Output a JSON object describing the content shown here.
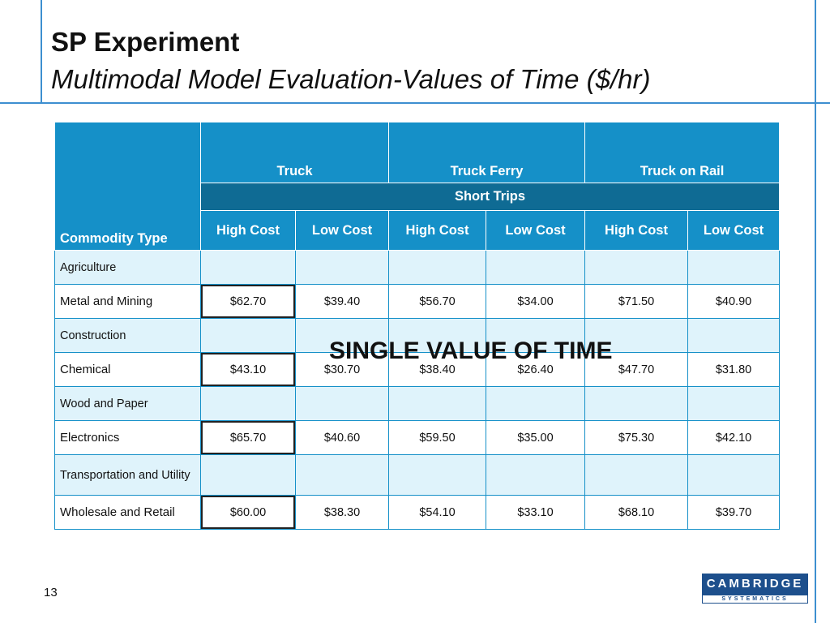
{
  "title": "SP Experiment",
  "subtitle": "Multimodal Model Evaluation-Values of Time ($/hr)",
  "table": {
    "commodity_header": "Commodity Type",
    "modes": [
      "Truck",
      "Truck Ferry",
      "Truck on Rail"
    ],
    "trip_band": "Short Trips",
    "cost_headers": [
      "High Cost",
      "Low Cost",
      "High Cost",
      "Low Cost",
      "High Cost",
      "Low Cost"
    ],
    "rows": [
      {
        "label": "Agriculture",
        "values": [
          "",
          "",
          "",
          "",
          "",
          ""
        ]
      },
      {
        "label": "Metal and Mining",
        "values": [
          "$62.70",
          "$39.40",
          "$56.70",
          "$34.00",
          "$71.50",
          "$40.90"
        ]
      },
      {
        "label": "Construction",
        "values": [
          "",
          "",
          "",
          "",
          "",
          ""
        ]
      },
      {
        "label": "Chemical",
        "values": [
          "$43.10",
          "$30.70",
          "$38.40",
          "$26.40",
          "$47.70",
          "$31.80"
        ]
      },
      {
        "label": "Wood and Paper",
        "values": [
          "",
          "",
          "",
          "",
          "",
          ""
        ]
      },
      {
        "label": "Electronics",
        "values": [
          "$65.70",
          "$40.60",
          "$59.50",
          "$35.00",
          "$75.30",
          "$42.10"
        ]
      },
      {
        "label": "Transportation and Utility",
        "values": [
          "",
          "",
          "",
          "",
          "",
          ""
        ]
      },
      {
        "label": "Wholesale and Retail",
        "values": [
          "$60.00",
          "$38.30",
          "$54.10",
          "$33.10",
          "$68.10",
          "$39.70"
        ]
      }
    ]
  },
  "overlay_text": "SINGLE VALUE OF TIME",
  "page_number": "13",
  "logo": {
    "top": "CAMBRIDGE",
    "bottom": "SYSTEMATICS"
  },
  "colors": {
    "header_blue": "#1590c8",
    "band_dark_blue": "#0f6b94",
    "row_light": "#dff3fb",
    "frame_line": "#3d8fd0",
    "logo_navy": "#1d4f8c"
  }
}
